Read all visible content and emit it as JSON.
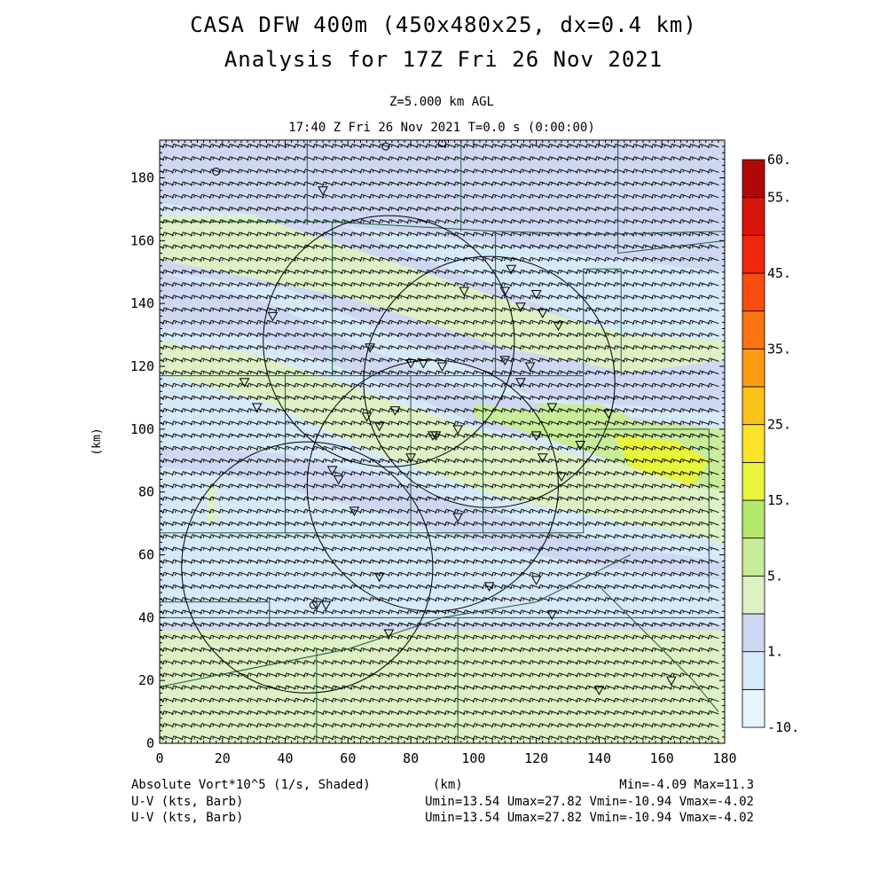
{
  "header": {
    "title_line1": "CASA DFW 400m (450x480x25, dx=0.4 km)",
    "title_line2": "Analysis for 17Z Fri 26 Nov 2021",
    "level": "Z=5.000 km AGL",
    "time": "17:40 Z Fri 26 Nov 2021   T=0.0 s (0:00:00)"
  },
  "footer": {
    "field1": "Absolute Vort*10^5 (1/s, Shaded)",
    "xunit": "(km)",
    "field1_range": "Min=-4.09 Max=11.3",
    "field2": "U-V (kts, Barb)",
    "field2_range": "Umin=13.54 Umax=27.82 Vmin=-10.94 Vmax=-4.02",
    "field3": "U-V (kts, Barb)",
    "field3_range": "Umin=13.54 Umax=27.82 Vmin=-10.94 Vmax=-4.02"
  },
  "chart_data": {
    "type": "heatmap",
    "xlabel": "",
    "ylabel": "(km)",
    "xlim": [
      0,
      180
    ],
    "ylim": [
      0,
      192
    ],
    "xticks": [
      0,
      20,
      40,
      60,
      80,
      100,
      120,
      140,
      160,
      180
    ],
    "yticks": [
      0,
      20,
      40,
      60,
      80,
      100,
      120,
      140,
      160,
      180
    ],
    "colorbar": {
      "levels": [
        -10,
        0,
        1,
        3,
        5,
        10,
        15,
        20,
        25,
        30,
        35,
        40,
        45,
        50,
        55,
        60
      ],
      "labels": [
        "-10.",
        "1.",
        "5.",
        "15.",
        "25.",
        "35.",
        "45.",
        "55.",
        "60."
      ],
      "colors": [
        "#e8f4fc",
        "#d6e9f8",
        "#cfd8f3",
        "#ddf1c4",
        "#c9ec9a",
        "#b4e86a",
        "#e8f53a",
        "#fbe327",
        "#fbc21a",
        "#fb9c12",
        "#fb7410",
        "#fa4c0e",
        "#f0260d",
        "#d8140c",
        "#b00808"
      ]
    },
    "vorticity_bands": [
      {
        "label": "east-north-east green band",
        "value_range": [
          5,
          10
        ]
      },
      {
        "label": "central diagonal green band",
        "value_range": [
          5,
          10
        ]
      },
      {
        "label": "southern green region",
        "value_range": [
          5,
          10
        ]
      },
      {
        "label": "yellow-green maximum near x=140 km y=95 km",
        "value_range": [
          10,
          15
        ]
      },
      {
        "label": "light blue bands",
        "value_range": [
          0,
          3
        ]
      }
    ],
    "wind_barbs": {
      "u_range_kts": [
        13.54,
        27.82
      ],
      "v_range_kts": [
        -10.94,
        -4.02
      ],
      "typical_u_kts": 20,
      "typical_v_kts": -7
    },
    "radar_rings": [
      {
        "center": [
          73,
          128
        ],
        "radius_km": 40
      },
      {
        "center": [
          87,
          82
        ],
        "radius_km": 40
      },
      {
        "center": [
          105,
          115
        ],
        "radius_km": 40
      },
      {
        "center": [
          47,
          56
        ],
        "radius_km": 40
      }
    ],
    "stations": [
      [
        36,
        136
      ],
      [
        52,
        176
      ],
      [
        67,
        126
      ],
      [
        75,
        106
      ],
      [
        80,
        121
      ],
      [
        84,
        121
      ],
      [
        90,
        120
      ],
      [
        87,
        98
      ],
      [
        80,
        91
      ],
      [
        88,
        98
      ],
      [
        95,
        100
      ],
      [
        55,
        87
      ],
      [
        57,
        84
      ],
      [
        62,
        74
      ],
      [
        70,
        53
      ],
      [
        50,
        44
      ],
      [
        53,
        44
      ],
      [
        73,
        35
      ],
      [
        105,
        50
      ],
      [
        120,
        52
      ],
      [
        125,
        41
      ],
      [
        140,
        17
      ],
      [
        163,
        20
      ],
      [
        95,
        72
      ],
      [
        120,
        98
      ],
      [
        122,
        91
      ],
      [
        128,
        85
      ],
      [
        112,
        151
      ],
      [
        110,
        144
      ],
      [
        115,
        139
      ],
      [
        122,
        137
      ],
      [
        127,
        133
      ],
      [
        120,
        143
      ],
      [
        97,
        144
      ],
      [
        110,
        122
      ],
      [
        115,
        115
      ],
      [
        118,
        120
      ],
      [
        125,
        107
      ],
      [
        134,
        95
      ],
      [
        143,
        105
      ],
      [
        27,
        115
      ],
      [
        31,
        107
      ],
      [
        66,
        104
      ],
      [
        70,
        101
      ]
    ],
    "station_circles": [
      [
        18,
        182
      ],
      [
        72,
        190
      ],
      [
        90,
        191
      ],
      [
        49,
        44
      ]
    ]
  }
}
